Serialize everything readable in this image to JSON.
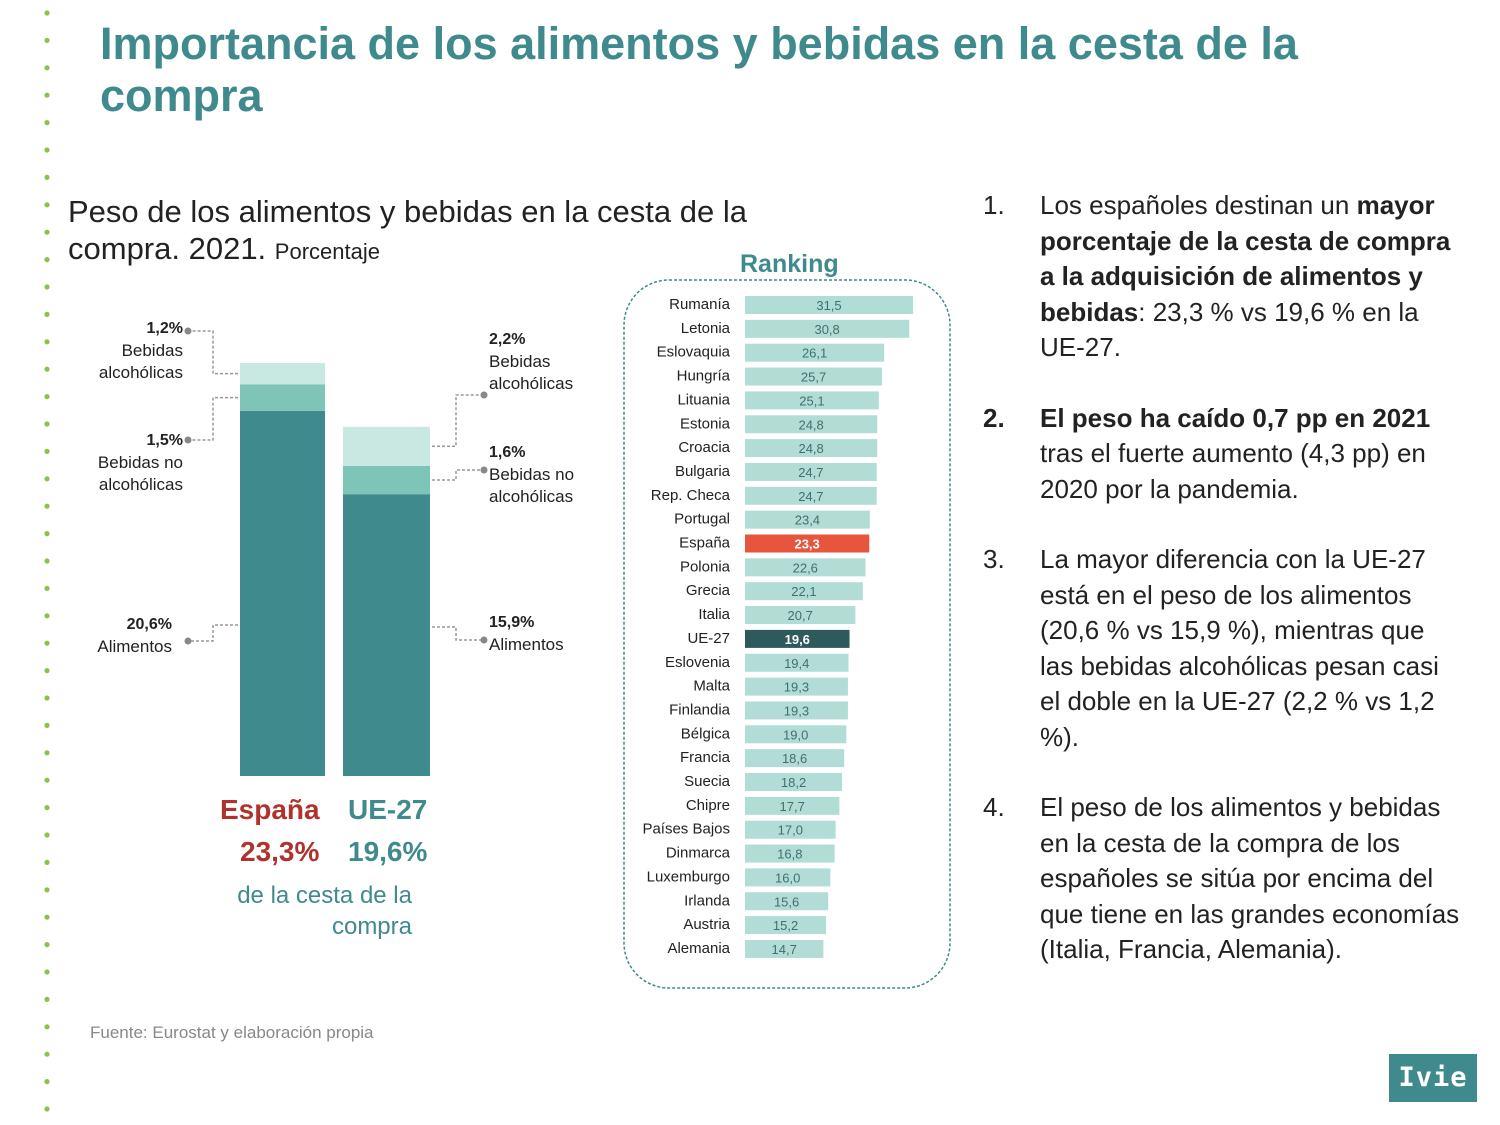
{
  "title": "Importancia de los alimentos y bebidas en la cesta de la compra",
  "subtitle": "Peso de los alimentos y bebidas en la cesta de la compra. 2021.",
  "subtitle_unit": "Porcentaje",
  "colors": {
    "accent": "#3f8a8c",
    "alimentos": "#3f8a8c",
    "no_alcoholicas": "#7ec4b7",
    "alcoholicas": "#c9e8e2",
    "ranking_bar": "#b2ddd6",
    "spain": "#e8553d",
    "eu": "#2e5a5b",
    "spain_text": "#b0322c",
    "dots": "#8bc34a"
  },
  "chart_data": [
    {
      "type": "bar",
      "stacked": true,
      "categories": [
        "España",
        "UE-27"
      ],
      "series": [
        {
          "name": "Alimentos",
          "values": [
            20.6,
            15.9
          ]
        },
        {
          "name": "Bebidas no alcohólicas",
          "values": [
            1.5,
            1.6
          ]
        },
        {
          "name": "Bebidas alcohólicas",
          "values": [
            1.2,
            2.2
          ]
        }
      ],
      "labels": {
        "spain": {
          "alcoholicas_pct": "1,2%",
          "alcoholicas_name": "Bebidas alcohólicas",
          "no_alcoholicas_pct": "1,5%",
          "no_alcoholicas_name": "Bebidas no alcohólicas",
          "alimentos_pct": "20,6%",
          "alimentos_name": "Alimentos"
        },
        "eu": {
          "alcoholicas_pct": "2,2%",
          "alcoholicas_name": "Bebidas alcohólicas",
          "no_alcoholicas_pct": "1,6%",
          "no_alcoholicas_name": "Bebidas no alcohólicas",
          "alimentos_pct": "15,9%",
          "alimentos_name": "Alimentos"
        }
      },
      "totals": [
        {
          "country": "España",
          "total": "23,3%"
        },
        {
          "country": "UE-27",
          "total": "19,6%"
        }
      ],
      "caption": "de la cesta de la compra"
    },
    {
      "type": "bar",
      "orientation": "horizontal",
      "title": "Ranking",
      "categories": [
        "Rumanía",
        "Letonia",
        "Eslovaquia",
        "Hungría",
        "Lituania",
        "Estonia",
        "Croacia",
        "Bulgaria",
        "Rep. Checa",
        "Portugal",
        "España",
        "Polonia",
        "Grecia",
        "Italia",
        "UE-27",
        "Eslovenia",
        "Malta",
        "Finlandia",
        "Bélgica",
        "Francia",
        "Suecia",
        "Chipre",
        "Países Bajos",
        "Dinmarca",
        "Luxemburgo",
        "Irlanda",
        "Austria",
        "Alemania"
      ],
      "values": [
        31.5,
        30.8,
        26.1,
        25.7,
        25.1,
        24.8,
        24.8,
        24.7,
        24.7,
        23.4,
        23.3,
        22.6,
        22.1,
        20.7,
        19.6,
        19.4,
        19.3,
        19.3,
        19.0,
        18.6,
        18.2,
        17.7,
        17.0,
        16.8,
        16.0,
        15.6,
        15.2,
        14.7
      ],
      "value_labels": [
        "31,5",
        "30,8",
        "26,1",
        "25,7",
        "25,1",
        "24,8",
        "24,8",
        "24,7",
        "24,7",
        "23,4",
        "23,3",
        "22,6",
        "22,1",
        "20,7",
        "19,6",
        "19,4",
        "19,3",
        "19,3",
        "19,0",
        "18,6",
        "18,2",
        "17,7",
        "17,0",
        "16,8",
        "16,0",
        "15,6",
        "15,2",
        "14,7"
      ],
      "highlight": {
        "España": "spain",
        "UE-27": "eu"
      }
    }
  ],
  "findings": [
    {
      "num": "1.",
      "html": "Los españoles destinan un <b>mayor porcentaje de la cesta de compra a la adquisición de alimentos y bebidas</b>: 23,3 % vs 19,6 % en la UE-27."
    },
    {
      "num": "2.",
      "html": "<b>El peso ha caído 0,7 pp en 2021</b> tras el fuerte aumento (4,3 pp) en 2020 por la pandemia.",
      "num_bold": true
    },
    {
      "num": "3.",
      "html": "La mayor diferencia con la UE-27 está en el peso de los alimentos (20,6 % vs 15,9 %), mientras que las bebidas alcohólicas pesan casi el doble en la UE-27 (2,2 % vs 1,2 %)."
    },
    {
      "num": "4.",
      "html": "El peso de los alimentos y bebidas en la cesta de la compra de los españoles se sitúa por encima del que tiene en las grandes economías (Italia, Francia, Alemania)."
    }
  ],
  "source": "Fuente: Eurostat y elaboración propia",
  "logo": "Ivie"
}
